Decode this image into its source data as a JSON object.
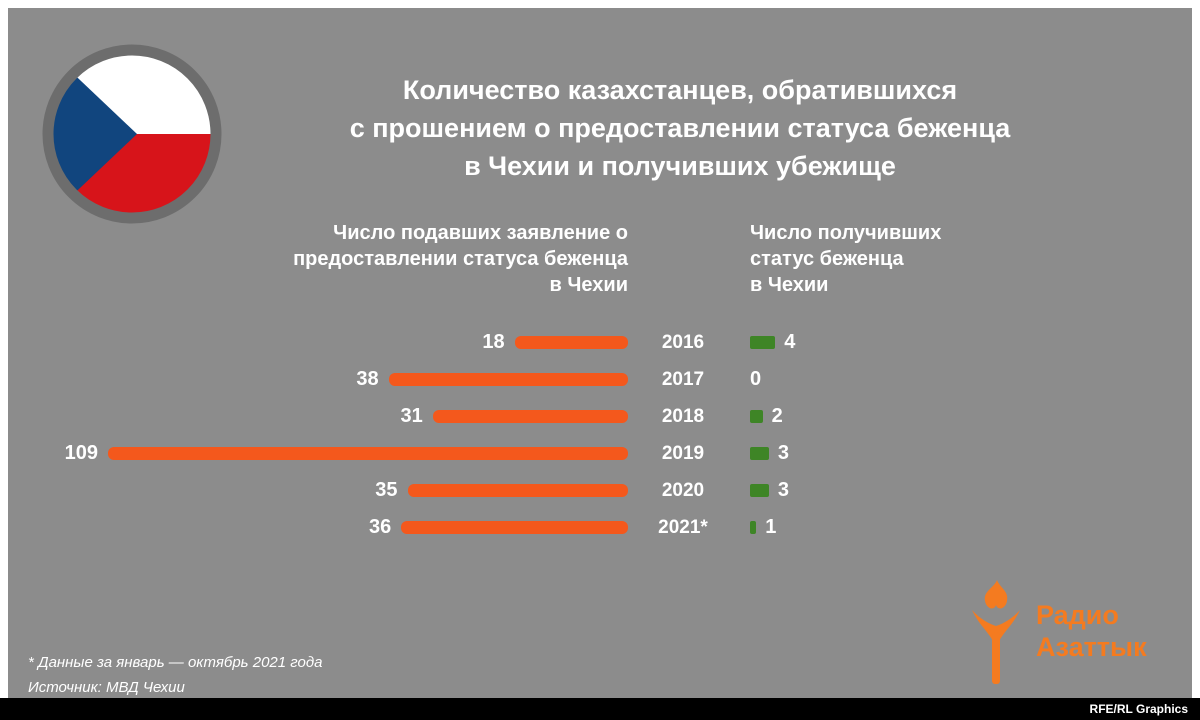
{
  "title": "Количество казахстанцев, обратившихся\nс прошением о предоставлении статуса беженца\nв Чехии и получивших убежище",
  "chart_data": {
    "type": "bar",
    "orientation": "horizontal",
    "categories": [
      "2016",
      "2017",
      "2018",
      "2019",
      "2020",
      "2021*"
    ],
    "series": [
      {
        "name": "Число подавших заявление о предоставлении статуса беженца в Чехии",
        "values": [
          18,
          38,
          31,
          109,
          35,
          36
        ],
        "color": "#f4581c"
      },
      {
        "name": "Число получивших статус беженца в Чехии",
        "values": [
          4,
          0,
          2,
          3,
          3,
          1
        ],
        "color": "#3e8526"
      }
    ],
    "left_header": "Число подавших заявление о\nпредоставлении статуса беженца\nв Чехии",
    "right_header": "Число получивших\nстатус беженца\nв Чехии",
    "value_range": [
      0,
      109
    ],
    "grid": false,
    "legend_position": "column-headers"
  },
  "footnotes": {
    "note": "* Данные за январь — октябрь 2021 года",
    "source": "Источник: МВД Чехии"
  },
  "logo": {
    "name": "Радио Азаттык",
    "line1": "Радио",
    "line2": "Азаттык",
    "color": "#f47b20"
  },
  "credit": "RFE/RL Graphics",
  "flag": {
    "country": "Czech Republic",
    "white": "#ffffff",
    "red": "#d7141a",
    "blue": "#11457e",
    "ring": "#6d6d6d"
  },
  "background_color": "#8c8c8c"
}
